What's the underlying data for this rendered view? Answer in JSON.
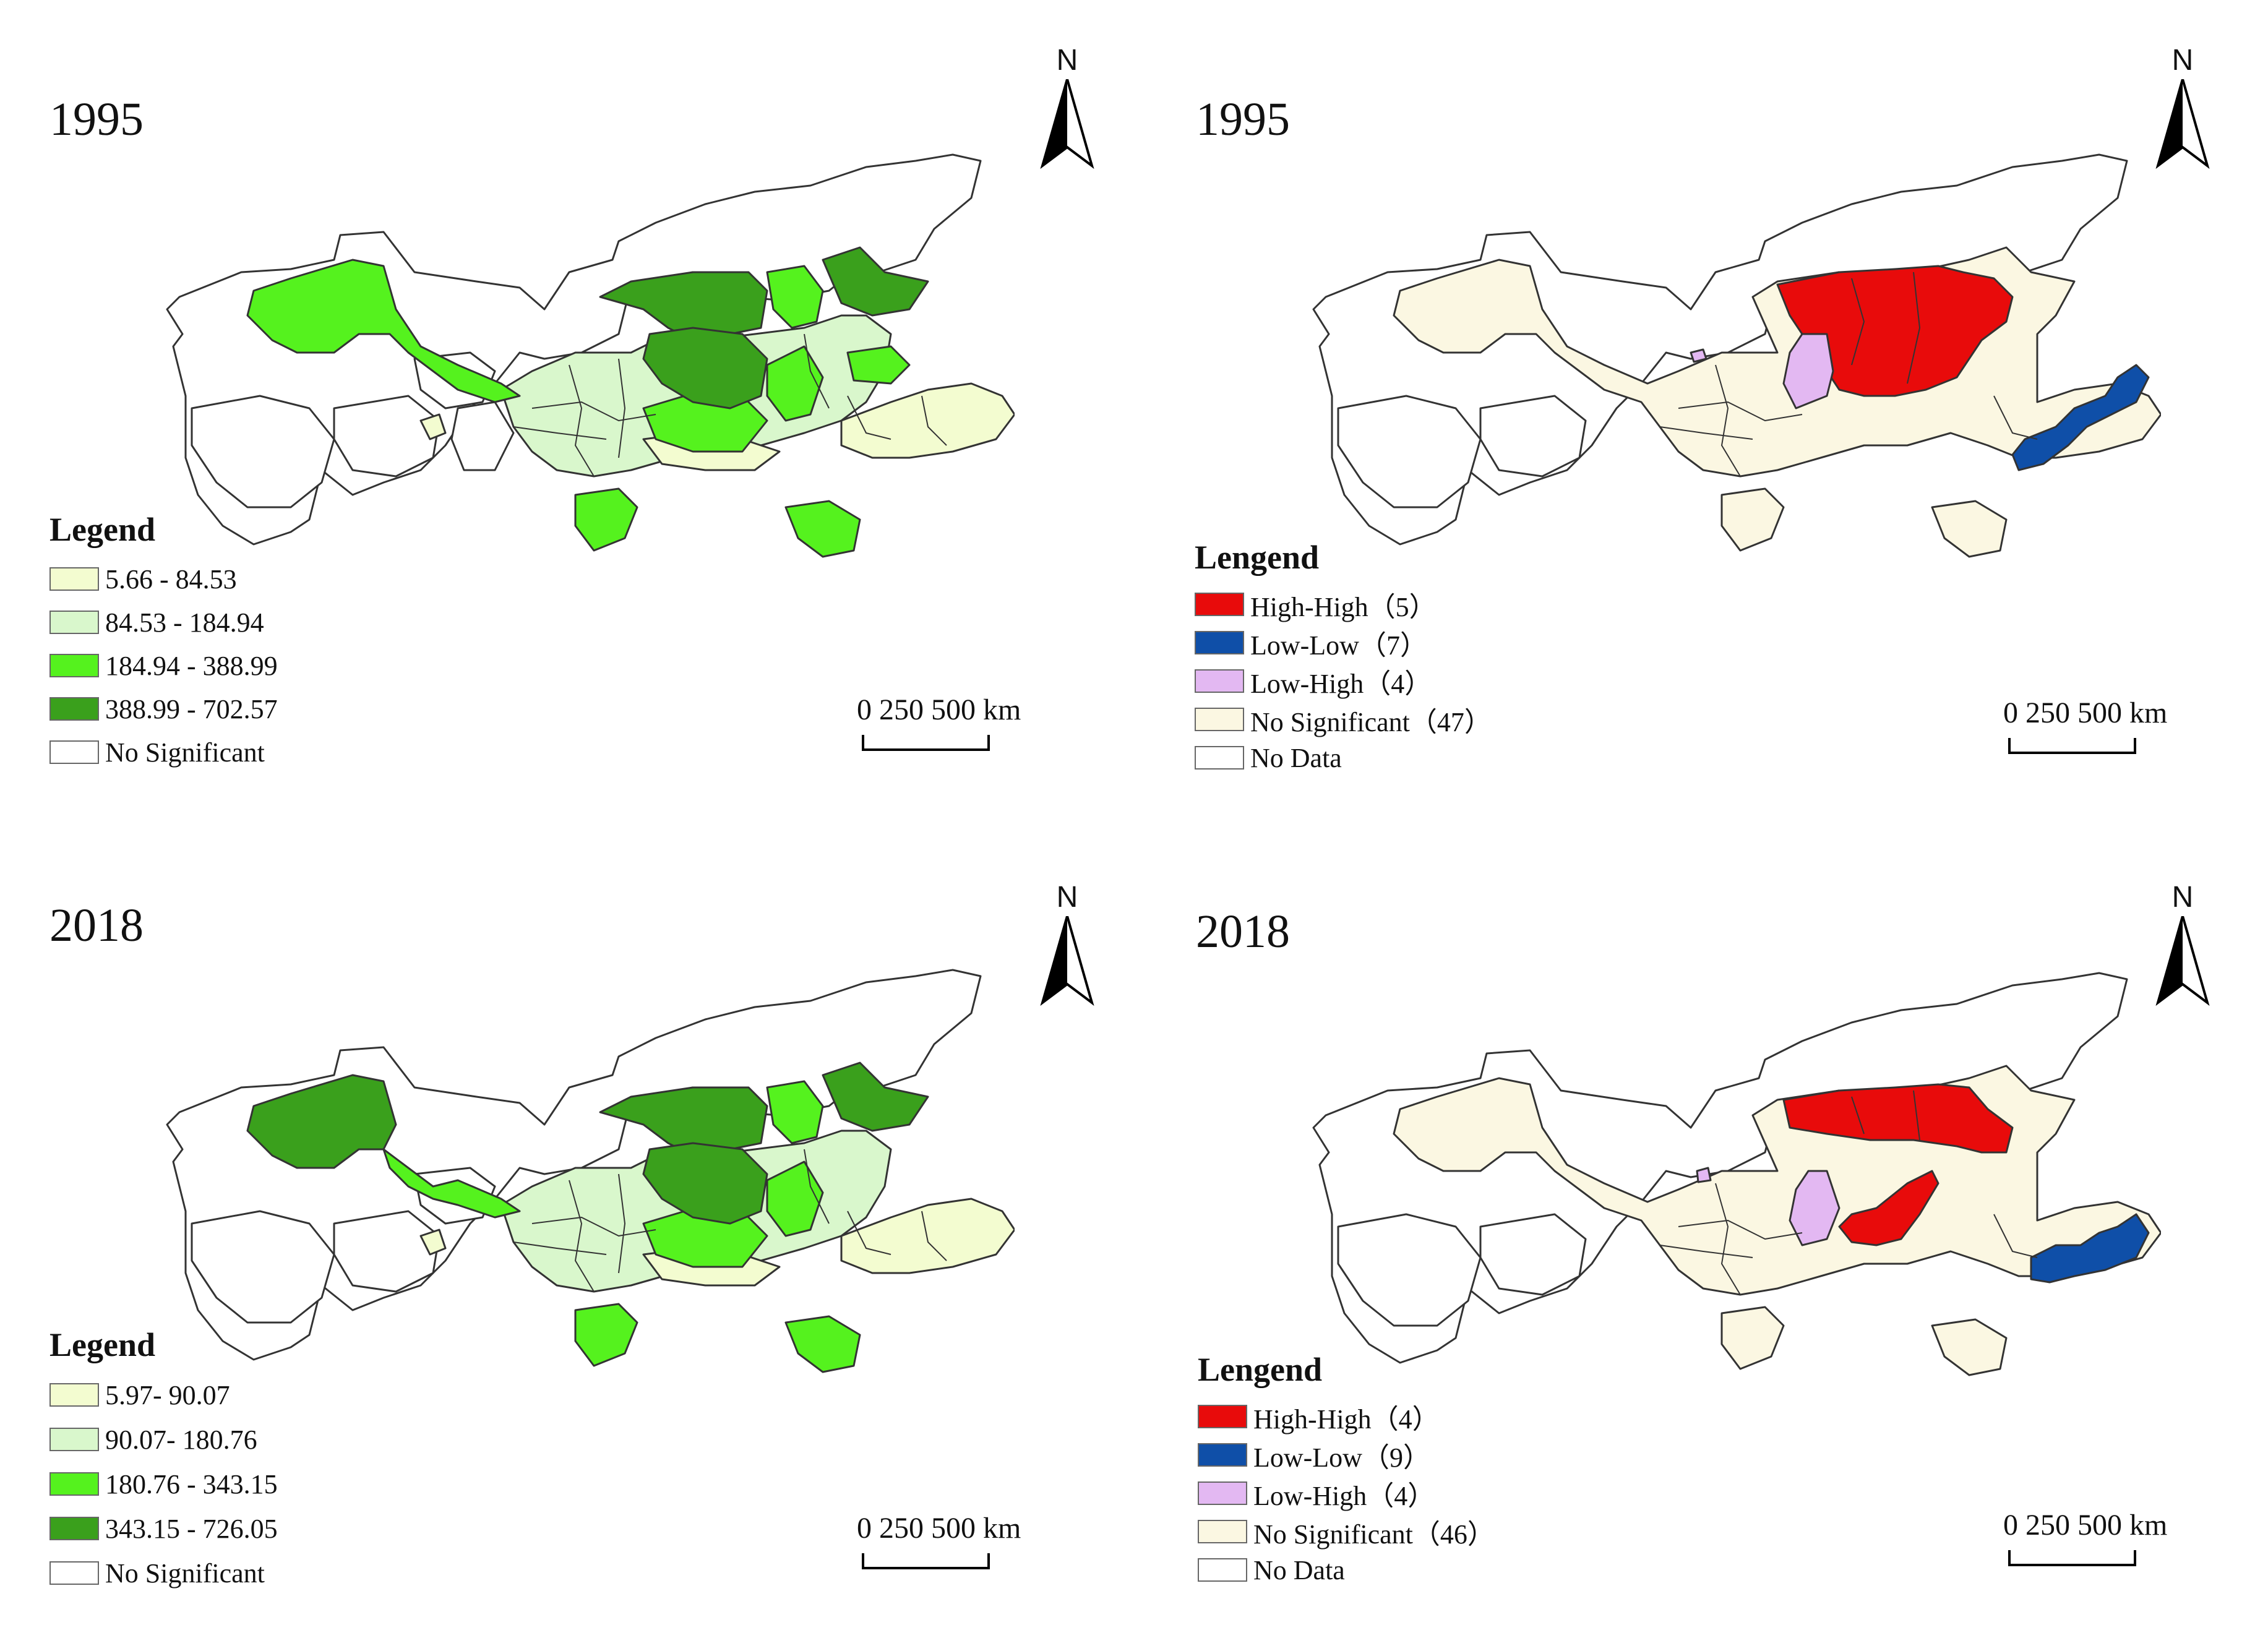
{
  "panels": [
    {
      "year": "1995",
      "legend_title": "Legend",
      "legend": [
        {
          "label": "5.66 - 84.53",
          "color": "#f3fcd0"
        },
        {
          "label": "84.53 - 184.94",
          "color": "#d9f7cc"
        },
        {
          "label": "184.94 - 388.99",
          "color": "#55f21e"
        },
        {
          "label": "388.99 - 702.57",
          "color": "#3aa01c"
        },
        {
          "label": "No Significant",
          "color": "#ffffff"
        }
      ],
      "north": "N",
      "scale": "0   250 500 km"
    },
    {
      "year": "1995",
      "legend_title": "Lengend",
      "legend": [
        {
          "label": "High-High（5）",
          "color": "#e80b0b"
        },
        {
          "label": "Low-Low（7）",
          "color": "#0f4fa8"
        },
        {
          "label": "Low-High（4）",
          "color": "#e3b8f2"
        },
        {
          "label": "No Significant（47）",
          "color": "#fbf7e2"
        },
        {
          "label": "No Data",
          "color": "#ffffff"
        }
      ],
      "north": "N",
      "scale": "0   250 500 km"
    },
    {
      "year": "2018",
      "legend_title": "Legend",
      "legend": [
        {
          "label": "5.97- 90.07",
          "color": "#f3fcd0"
        },
        {
          "label": "90.07- 180.76",
          "color": "#d9f7cc"
        },
        {
          "label": "180.76 - 343.15",
          "color": "#55f21e"
        },
        {
          "label": "343.15 - 726.05",
          "color": "#3aa01c"
        },
        {
          "label": "No Significant",
          "color": "#ffffff"
        }
      ],
      "north": "N",
      "scale": "0   250 500 km"
    },
    {
      "year": "2018",
      "legend_title": "Lengend",
      "legend": [
        {
          "label": "High-High（4）",
          "color": "#e80b0b"
        },
        {
          "label": "Low-Low（9）",
          "color": "#0f4fa8"
        },
        {
          "label": "Low-High（4）",
          "color": "#e3b8f2"
        },
        {
          "label": "No Significant（46）",
          "color": "#fbf7e2"
        },
        {
          "label": "No Data",
          "color": "#ffffff"
        }
      ],
      "north": "N",
      "scale": "0   250 500 km"
    }
  ]
}
